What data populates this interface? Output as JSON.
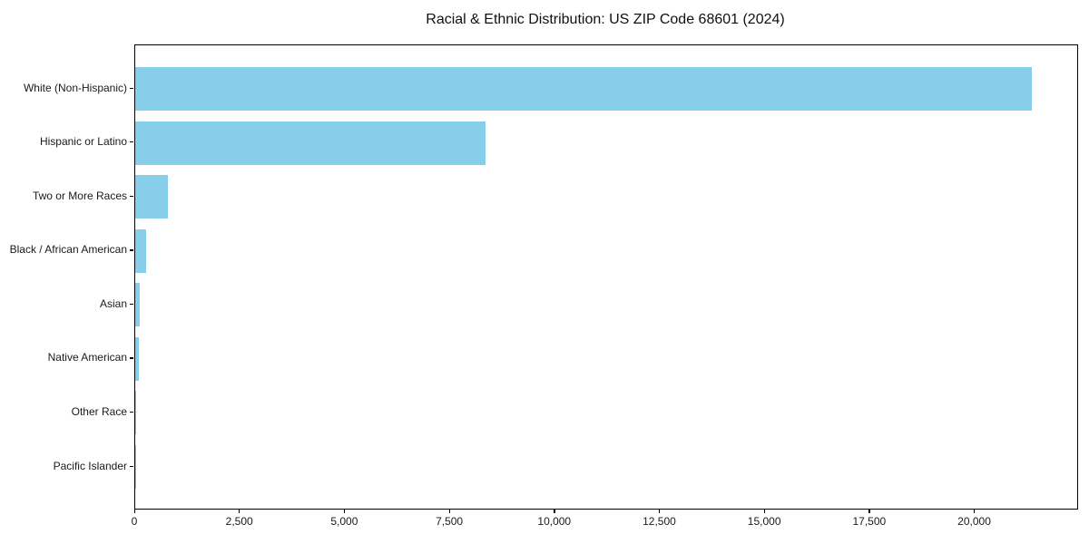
{
  "title": "Racial & Ethnic Distribution: US ZIP Code 68601 (2024)",
  "colors": {
    "bar": "#87CEEB",
    "axis": "#000000",
    "text": "#1a1a1a",
    "background": "#ffffff"
  },
  "chart_data": {
    "type": "bar",
    "orientation": "horizontal",
    "title": "Racial & Ethnic Distribution: US ZIP Code 68601 (2024)",
    "categories": [
      "White (Non-Hispanic)",
      "Hispanic or Latino",
      "Two or More Races",
      "Black / African American",
      "Asian",
      "Native American",
      "Other Race",
      "Pacific Islander"
    ],
    "values": [
      21350,
      8340,
      785,
      265,
      100,
      78,
      20,
      6
    ],
    "xlabel": "",
    "ylabel": "",
    "xlim": [
      0,
      22430
    ],
    "x_ticks": [
      0,
      2500,
      5000,
      7500,
      10000,
      12500,
      15000,
      17500,
      20000
    ],
    "x_tick_labels": [
      "0",
      "2,500",
      "5,000",
      "7,500",
      "10,000",
      "12,500",
      "15,000",
      "17,500",
      "20,000"
    ],
    "bar_color": "#87CEEB",
    "grid": false,
    "legend": null
  }
}
